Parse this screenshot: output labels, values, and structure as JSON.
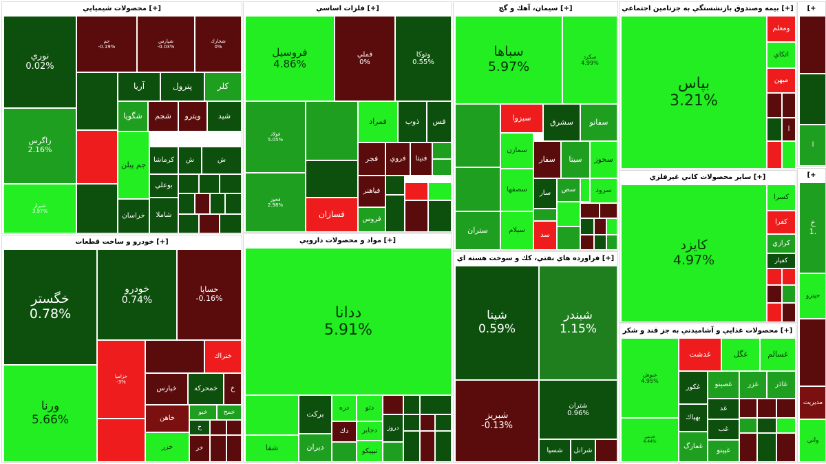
{
  "colors": {
    "bright": "#22ee22",
    "mid": "#1f9f1f",
    "dark": "#0d4f0d",
    "darkred": "#5a0b0b",
    "red": "#ee1c1c",
    "maroon": "#7a1010"
  },
  "sections": [
    {
      "title": "محصولات شيميايي [+]"
    },
    {
      "title": "خودرو و ساخت قطعات [+]"
    },
    {
      "title": "فلزات اساسي [+]"
    },
    {
      "title": "مواد و محصولات دارويي [+]"
    },
    {
      "title": "سيمان، آهك و گچ [+]"
    },
    {
      "title": "فراورده هاي نفتي، كك و سوخت هسته اي [+]"
    },
    {
      "title": "بيمه وصندوق بازنشستگي به جزتامين اجتماعي [+]"
    },
    {
      "title": "ساير محصولات كاني غيرفلزي [+]"
    },
    {
      "title": "محصولات غذايي و آشاميدني به جز قند و شكر [+]"
    },
    {
      "title": "[+"
    },
    {
      "title": "[+"
    }
  ],
  "tiles": {
    "nouri": {
      "n": "نوري",
      "p": "0.02%"
    },
    "zagros": {
      "n": "زاگرس",
      "p": "2.16%"
    },
    "shiraz": {
      "n": "شيراز",
      "p": "3.97%"
    },
    "jam": {
      "n": "جم",
      "p": "-0.19%"
    },
    "shpars": {
      "n": "شپارس",
      "p": "-0.03%"
    },
    "shkhark": {
      "n": "شخارك",
      "p": "0%"
    },
    "kala": {
      "n": "كلر"
    },
    "petrol": {
      "n": "پترول"
    },
    "arya": {
      "n": "آريا"
    },
    "shgooya": {
      "n": "شگويا"
    },
    "shjam": {
      "n": "شجم"
    },
    "vitro": {
      "n": "ويترو"
    },
    "shsid": {
      "n": "شيد"
    },
    "jampilen": {
      "n": "جم پيلن"
    },
    "kermasha": {
      "n": "كرماشا"
    },
    "sh1": {
      "n": "ش"
    },
    "sh2": {
      "n": "ش"
    },
    "booali": {
      "n": "بوعلي"
    },
    "khorasan": {
      "n": "خراسان"
    },
    "shamla": {
      "n": "شاملا"
    },
    "khgostar": {
      "n": "خگستر",
      "p": "0.78%"
    },
    "khodro": {
      "n": "خودرو",
      "p": "0.74%"
    },
    "khsapa": {
      "n": "خساپا",
      "p": "-0.16%"
    },
    "vorna": {
      "n": "ورنا",
      "p": "5.66%"
    },
    "khzamia": {
      "n": "خزاميا",
      "p": "-3%"
    },
    "khtrak": {
      "n": "ختراك"
    },
    "khmehrke": {
      "n": "خمحركه"
    },
    "kharis": {
      "n": "خپارس"
    },
    "khaheen": {
      "n": "خاهن"
    },
    "khzar": {
      "n": "خزر"
    },
    "khbo": {
      "n": "خبو"
    },
    "khmeh": {
      "n": "خمح"
    },
    "kh1": {
      "n": "خ"
    },
    "kh2": {
      "n": "خر"
    },
    "foroosil": {
      "n": "فروسيل",
      "p": "4.86%"
    },
    "fameli": {
      "n": "فملي",
      "p": "0%"
    },
    "vatooka": {
      "n": "وتوكا",
      "p": "0.55%"
    },
    "foolad": {
      "n": "فولاد",
      "p": "5.05%"
    },
    "fkhooz": {
      "n": "فخوز",
      "p": "2.98%"
    },
    "fsazan": {
      "n": "فسازان"
    },
    "famrad": {
      "n": "فمراد"
    },
    "zob": {
      "n": "ذوب"
    },
    "fes": {
      "n": "فس"
    },
    "fenita": {
      "n": "فنيتا"
    },
    "forooy": {
      "n": "فروي"
    },
    "fajr": {
      "n": "فجر"
    },
    "fbahonar": {
      "n": "فباهنر"
    },
    "froos": {
      "n": "فروس"
    },
    "dana": {
      "n": "ددانا",
      "p": "5.91%"
    },
    "barkat": {
      "n": "بركت"
    },
    "dareh": {
      "n": "دره"
    },
    "datoo": {
      "n": "دتو"
    },
    "dajaber": {
      "n": "دجابر"
    },
    "darooz": {
      "n": "دروز"
    },
    "daroon": {
      "n": "ديران"
    },
    "tipico": {
      "n": "تيپيكو"
    },
    "shafa": {
      "n": "شفا"
    },
    "dak": {
      "n": "دك"
    },
    "sebaha": {
      "n": "سباها",
      "p": "5.97%"
    },
    "sakord": {
      "n": "سكرد",
      "p": "4.99%"
    },
    "sbzva": {
      "n": "سبزوا"
    },
    "sharq": {
      "n": "سشرق"
    },
    "sfano": {
      "n": "سفانو"
    },
    "samazan": {
      "n": "سمازن"
    },
    "sfar": {
      "n": "سفار"
    },
    "sita": {
      "n": "سيتا"
    },
    "skhooz": {
      "n": "سخوز"
    },
    "sesfaha": {
      "n": "سصفها"
    },
    "sar": {
      "n": "سار"
    },
    "sarood": {
      "n": "سرود"
    },
    "sshah": {
      "n": "سص"
    },
    "sstran": {
      "n": "ستران"
    },
    "selam": {
      "n": "سيلام"
    },
    "sad": {
      "n": "سد"
    },
    "shepna": {
      "n": "شپنا",
      "p": "0.59%"
    },
    "shbandar": {
      "n": "شبندر",
      "p": "1.15%"
    },
    "shbriz": {
      "n": "شبريز",
      "p": "-0.13%"
    },
    "shtran": {
      "n": "شتران",
      "p": "0.96%"
    },
    "shsepa": {
      "n": "شسپا"
    },
    "shral": {
      "n": "شرانل"
    },
    "bpas": {
      "n": "بپاس",
      "p": "3.21%"
    },
    "vmalem": {
      "n": "ومعلم"
    },
    "atkay": {
      "n": "اتكاي"
    },
    "mihan": {
      "n": "ميهن"
    },
    "kayzd": {
      "n": "كايزد",
      "p": "4.97%"
    },
    "ksra": {
      "n": "كسرا"
    },
    "kfra": {
      "n": "كفرا"
    },
    "kraz": {
      "n": "كرازي"
    },
    "kfpar": {
      "n": "كفپار"
    },
    "ghnoosh": {
      "n": "غنوش",
      "p": "4.95%"
    },
    "ghdasht": {
      "n": "غدشت"
    },
    "ghgol": {
      "n": "غگل"
    },
    "ghsalem": {
      "n": "غسالم"
    },
    "ghkoor": {
      "n": "غكور"
    },
    "ghsino": {
      "n": "غصينو"
    },
    "ghzr": {
      "n": "غزر"
    },
    "ghzar": {
      "n": "غاذر"
    },
    "behak": {
      "n": "بهپاك"
    },
    "ghmaraj": {
      "n": "غمارگ"
    },
    "ghpino": {
      "n": "غپينو"
    },
    "ghdis": {
      "n": "غديس",
      "p": "4.44%"
    },
    "ghb": {
      "n": "غب"
    },
    "ghd": {
      "n": "غد"
    },
    "r1": {
      "n": "ا"
    },
    "r2": {
      "n": "خ"
    },
    "r3": {
      "n": "1."
    },
    "r4": {
      "n": "حپترو"
    },
    "r5": {
      "n": "مديريت"
    },
    "r6": {
      "n": "واتي"
    }
  }
}
